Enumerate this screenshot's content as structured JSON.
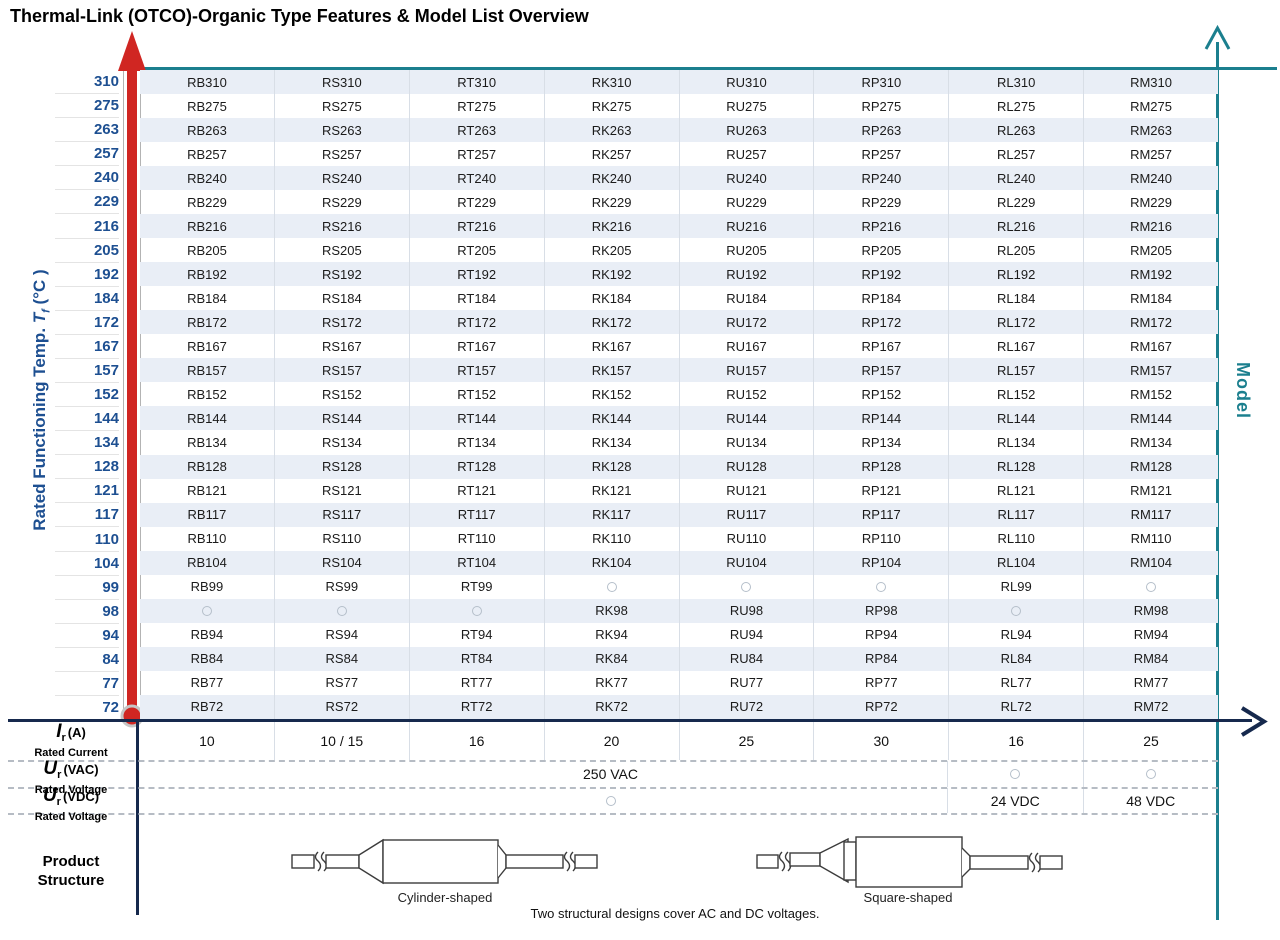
{
  "title": "Thermal-Link (OTCO)-Organic Type Features & Model List Overview",
  "y_axis": {
    "text_before": "Rated Functioning Temp. ",
    "symbol": "T",
    "symbol_sub": "f",
    "text_after": " (°C )"
  },
  "right_axis": {
    "label": "Model"
  },
  "chart_data": {
    "type": "table",
    "x_axis_title": "Model",
    "y_axis_title": "Rated Functioning Temp. Tf (°C)",
    "column_prefixes": [
      "RB",
      "RS",
      "RT",
      "RK",
      "RU",
      "RP",
      "RL",
      "RM"
    ],
    "rows": [
      {
        "temp": "310",
        "cells": [
          "RB310",
          "RS310",
          "RT310",
          "RK310",
          "RU310",
          "RP310",
          "RL310",
          "RM310"
        ]
      },
      {
        "temp": "275",
        "cells": [
          "RB275",
          "RS275",
          "RT275",
          "RK275",
          "RU275",
          "RP275",
          "RL275",
          "RM275"
        ]
      },
      {
        "temp": "263",
        "cells": [
          "RB263",
          "RS263",
          "RT263",
          "RK263",
          "RU263",
          "RP263",
          "RL263",
          "RM263"
        ]
      },
      {
        "temp": "257",
        "cells": [
          "RB257",
          "RS257",
          "RT257",
          "RK257",
          "RU257",
          "RP257",
          "RL257",
          "RM257"
        ]
      },
      {
        "temp": "240",
        "cells": [
          "RB240",
          "RS240",
          "RT240",
          "RK240",
          "RU240",
          "RP240",
          "RL240",
          "RM240"
        ]
      },
      {
        "temp": "229",
        "cells": [
          "RB229",
          "RS229",
          "RT229",
          "RK229",
          "RU229",
          "RP229",
          "RL229",
          "RM229"
        ]
      },
      {
        "temp": "216",
        "cells": [
          "RB216",
          "RS216",
          "RT216",
          "RK216",
          "RU216",
          "RP216",
          "RL216",
          "RM216"
        ]
      },
      {
        "temp": "205",
        "cells": [
          "RB205",
          "RS205",
          "RT205",
          "RK205",
          "RU205",
          "RP205",
          "RL205",
          "RM205"
        ]
      },
      {
        "temp": "192",
        "cells": [
          "RB192",
          "RS192",
          "RT192",
          "RK192",
          "RU192",
          "RP192",
          "RL192",
          "RM192"
        ]
      },
      {
        "temp": "184",
        "cells": [
          "RB184",
          "RS184",
          "RT184",
          "RK184",
          "RU184",
          "RP184",
          "RL184",
          "RM184"
        ]
      },
      {
        "temp": "172",
        "cells": [
          "RB172",
          "RS172",
          "RT172",
          "RK172",
          "RU172",
          "RP172",
          "RL172",
          "RM172"
        ]
      },
      {
        "temp": "167",
        "cells": [
          "RB167",
          "RS167",
          "RT167",
          "RK167",
          "RU167",
          "RP167",
          "RL167",
          "RM167"
        ]
      },
      {
        "temp": "157",
        "cells": [
          "RB157",
          "RS157",
          "RT157",
          "RK157",
          "RU157",
          "RP157",
          "RL157",
          "RM157"
        ]
      },
      {
        "temp": "152",
        "cells": [
          "RB152",
          "RS152",
          "RT152",
          "RK152",
          "RU152",
          "RP152",
          "RL152",
          "RM152"
        ]
      },
      {
        "temp": "144",
        "cells": [
          "RB144",
          "RS144",
          "RT144",
          "RK144",
          "RU144",
          "RP144",
          "RL144",
          "RM144"
        ]
      },
      {
        "temp": "134",
        "cells": [
          "RB134",
          "RS134",
          "RT134",
          "RK134",
          "RU134",
          "RP134",
          "RL134",
          "RM134"
        ]
      },
      {
        "temp": "128",
        "cells": [
          "RB128",
          "RS128",
          "RT128",
          "RK128",
          "RU128",
          "RP128",
          "RL128",
          "RM128"
        ]
      },
      {
        "temp": "121",
        "cells": [
          "RB121",
          "RS121",
          "RT121",
          "RK121",
          "RU121",
          "RP121",
          "RL121",
          "RM121"
        ]
      },
      {
        "temp": "117",
        "cells": [
          "RB117",
          "RS117",
          "RT117",
          "RK117",
          "RU117",
          "RP117",
          "RL117",
          "RM117"
        ]
      },
      {
        "temp": "110",
        "cells": [
          "RB110",
          "RS110",
          "RT110",
          "RK110",
          "RU110",
          "RP110",
          "RL110",
          "RM110"
        ]
      },
      {
        "temp": "104",
        "cells": [
          "RB104",
          "RS104",
          "RT104",
          "RK104",
          "RU104",
          "RP104",
          "RL104",
          "RM104"
        ]
      },
      {
        "temp": "99",
        "cells": [
          "RB99",
          "RS99",
          "RT99",
          null,
          null,
          null,
          "RL99",
          null
        ]
      },
      {
        "temp": "98",
        "cells": [
          null,
          null,
          null,
          "RK98",
          "RU98",
          "RP98",
          null,
          "RM98"
        ]
      },
      {
        "temp": "94",
        "cells": [
          "RB94",
          "RS94",
          "RT94",
          "RK94",
          "RU94",
          "RP94",
          "RL94",
          "RM94"
        ]
      },
      {
        "temp": "84",
        "cells": [
          "RB84",
          "RS84",
          "RT84",
          "RK84",
          "RU84",
          "RP84",
          "RL84",
          "RM84"
        ]
      },
      {
        "temp": "77",
        "cells": [
          "RB77",
          "RS77",
          "RT77",
          "RK77",
          "RU77",
          "RP77",
          "RL77",
          "RM77"
        ]
      },
      {
        "temp": "72",
        "cells": [
          "RB72",
          "RS72",
          "RT72",
          "RK72",
          "RU72",
          "RP72",
          "RL72",
          "RM72"
        ]
      }
    ]
  },
  "bottom_axis": {
    "rated_current": {
      "symbol": "I",
      "symbol_sub": "r",
      "unit": "(A)",
      "caption": "Rated Current",
      "values": [
        "10",
        "10 / 15",
        "16",
        "20",
        "25",
        "30",
        "16",
        "25"
      ]
    },
    "rated_voltage_ac": {
      "symbol": "U",
      "symbol_sub": "r",
      "unit": "(VAC)",
      "caption": "Rated Voltage",
      "merged_value": "250 VAC"
    },
    "rated_voltage_dc": {
      "symbol": "U",
      "symbol_sub": "r",
      "unit": "(VDC)",
      "caption": "Rated Voltage",
      "right_values": [
        "24 VDC",
        "48 VDC"
      ]
    }
  },
  "product_structure": {
    "label_line1": "Product",
    "label_line2": "Structure",
    "shapes": [
      {
        "name": "Cylinder-shaped"
      },
      {
        "name": "Square-shaped"
      }
    ],
    "caption": "Two structural designs cover AC and DC voltages."
  },
  "colors": {
    "accent_teal": "#1b7f8e",
    "axis_navy": "#16294d",
    "temp_blue": "#1d4f91",
    "arrow_red": "#d02622",
    "row_alt": "#e9eef6"
  }
}
